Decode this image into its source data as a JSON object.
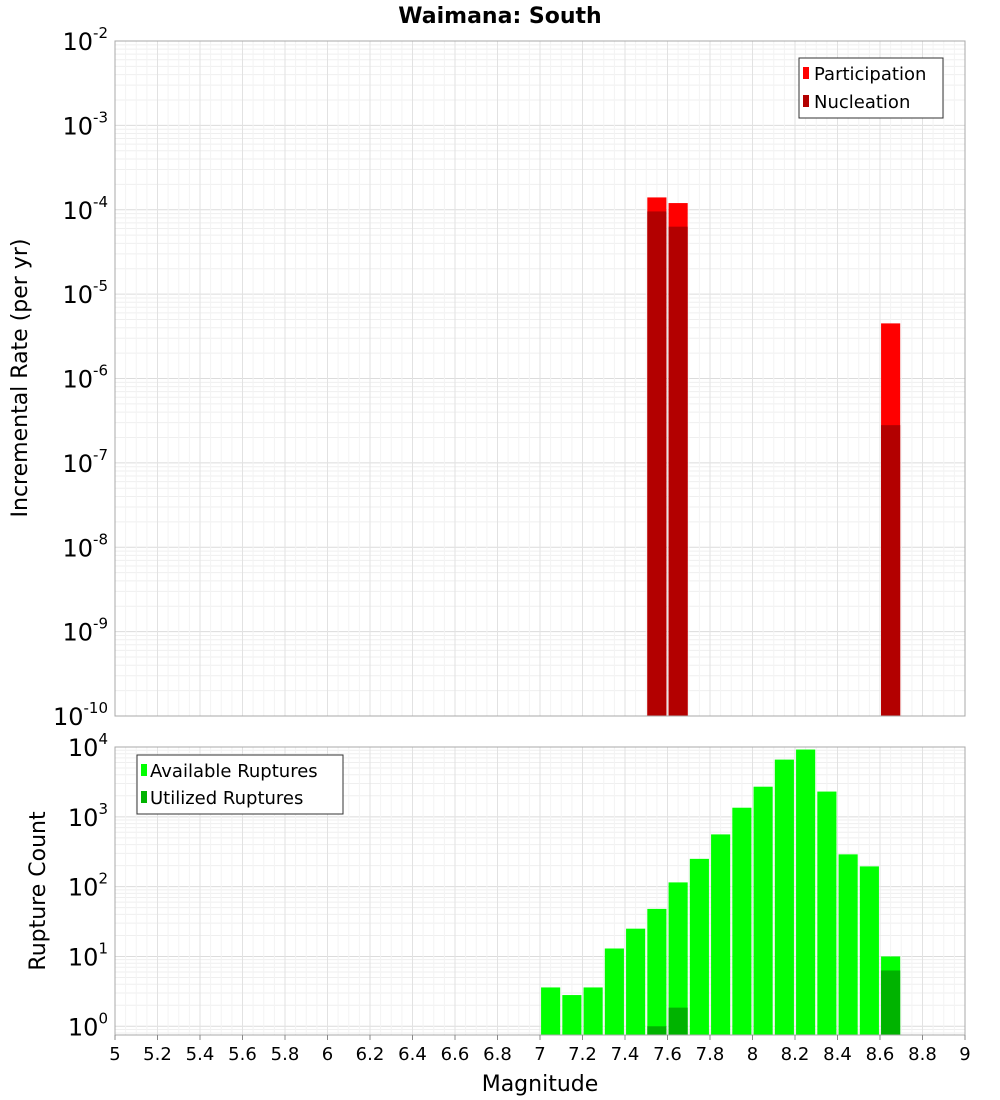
{
  "chart_data": [
    {
      "type": "bar",
      "title": "Waimana: South",
      "xlabel": "",
      "ylabel": "Incremental Rate (per yr)",
      "xlim": [
        5,
        9
      ],
      "ylim": [
        1e-10,
        0.01
      ],
      "yscale": "log",
      "bar_width": 0.09,
      "y_ticks": [
        {
          "base": "10",
          "exp": "-2"
        },
        {
          "base": "10",
          "exp": "-3"
        },
        {
          "base": "10",
          "exp": "-4"
        },
        {
          "base": "10",
          "exp": "-5"
        },
        {
          "base": "10",
          "exp": "-6"
        },
        {
          "base": "10",
          "exp": "-7"
        },
        {
          "base": "10",
          "exp": "-8"
        },
        {
          "base": "10",
          "exp": "-9"
        },
        {
          "base": "10",
          "exp": "-10"
        }
      ],
      "legend": {
        "position": "top-right"
      },
      "grid": true,
      "series": [
        {
          "name": "Participation",
          "color": "#ff0000",
          "points": [
            {
              "x": 7.55,
              "y": 0.00014
            },
            {
              "x": 7.65,
              "y": 0.00012
            },
            {
              "x": 8.65,
              "y": 4.5e-06
            }
          ]
        },
        {
          "name": "Nucleation",
          "color": "#b30000",
          "points": [
            {
              "x": 7.55,
              "y": 9.55e-05
            },
            {
              "x": 7.65,
              "y": 6.3e-05
            },
            {
              "x": 8.65,
              "y": 2.8e-07
            }
          ]
        }
      ]
    },
    {
      "type": "bar",
      "title": "",
      "xlabel": "Magnitude",
      "ylabel": "Rupture Count",
      "xlim": [
        5,
        9
      ],
      "ylim": [
        0.75,
        10000
      ],
      "yscale": "log",
      "bar_width": 0.09,
      "x_ticks": [
        "5",
        "5.2",
        "5.4",
        "5.6",
        "5.8",
        "6",
        "6.2",
        "6.4",
        "6.6",
        "6.8",
        "7",
        "7.2",
        "7.4",
        "7.6",
        "7.8",
        "8",
        "8.2",
        "8.4",
        "8.6",
        "8.8",
        "9"
      ],
      "y_ticks": [
        {
          "base": "10",
          "exp": "4"
        },
        {
          "base": "10",
          "exp": "3"
        },
        {
          "base": "10",
          "exp": "2"
        },
        {
          "base": "10",
          "exp": "1"
        },
        {
          "base": "10",
          "exp": "0"
        }
      ],
      "legend": {
        "position": "top-left"
      },
      "grid": true,
      "series": [
        {
          "name": "Available Ruptures",
          "color": "#00ff00",
          "points": [
            {
              "x": 7.05,
              "y": 3.6
            },
            {
              "x": 7.15,
              "y": 2.8
            },
            {
              "x": 7.25,
              "y": 3.6
            },
            {
              "x": 7.35,
              "y": 13
            },
            {
              "x": 7.45,
              "y": 25
            },
            {
              "x": 7.55,
              "y": 48
            },
            {
              "x": 7.65,
              "y": 115
            },
            {
              "x": 7.75,
              "y": 250
            },
            {
              "x": 7.85,
              "y": 560
            },
            {
              "x": 7.95,
              "y": 1350
            },
            {
              "x": 8.05,
              "y": 2700
            },
            {
              "x": 8.15,
              "y": 6600
            },
            {
              "x": 8.25,
              "y": 9200
            },
            {
              "x": 8.35,
              "y": 2300
            },
            {
              "x": 8.45,
              "y": 290
            },
            {
              "x": 8.55,
              "y": 195
            },
            {
              "x": 8.65,
              "y": 10
            }
          ]
        },
        {
          "name": "Utilized Ruptures",
          "color": "#00b300",
          "points": [
            {
              "x": 7.55,
              "y": 1
            },
            {
              "x": 7.65,
              "y": 1.85
            },
            {
              "x": 8.65,
              "y": 6.3
            }
          ]
        }
      ]
    }
  ]
}
